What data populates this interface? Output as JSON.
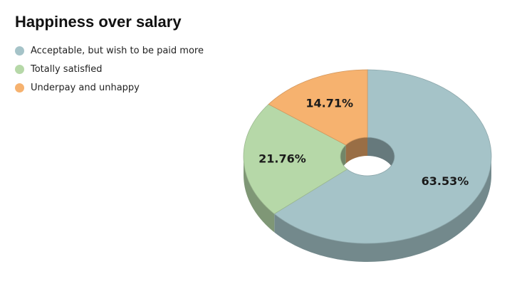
{
  "chart_data": {
    "type": "pie",
    "style": "3d-donut",
    "title": "Happiness over salary",
    "legend_position": "top-left",
    "slices": [
      {
        "label": "Acceptable, but wish to be paid more",
        "value": 63.53,
        "value_label": "63.53%",
        "color": "#a5c3c8"
      },
      {
        "label": "Totally satisfied",
        "value": 21.76,
        "value_label": "21.76%",
        "color": "#b6d8a8"
      },
      {
        "label": "Underpay and unhappy",
        "value": 14.71,
        "value_label": "14.71%",
        "color": "#f6b26f"
      }
    ]
  }
}
